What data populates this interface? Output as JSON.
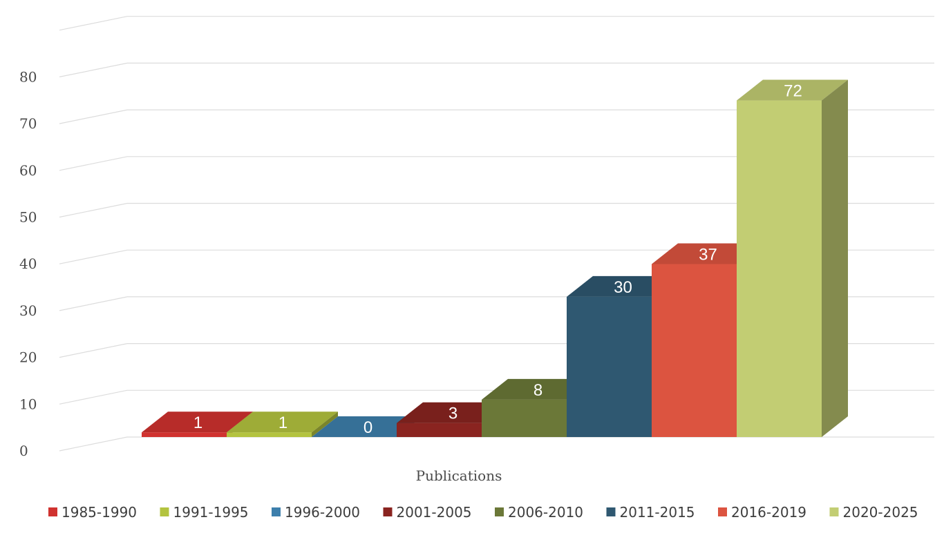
{
  "chart_data": {
    "type": "bar",
    "style": "3d-column",
    "xlabel": "Publications",
    "ylabel": "",
    "ylim": [
      0,
      90
    ],
    "yticks": [
      0,
      10,
      20,
      30,
      40,
      50,
      60,
      70,
      80
    ],
    "grid": true,
    "legend_position": "bottom",
    "categories": [
      "1985-1990",
      "1991-1995",
      "1996-2000",
      "2001-2005",
      "2006-2010",
      "2011-2015",
      "2016-2019",
      "2020-2025"
    ],
    "values": [
      1,
      1,
      0,
      3,
      8,
      30,
      37,
      72
    ],
    "colors": [
      "#d0322f",
      "#b3c33f",
      "#3d7fac",
      "#8a2420",
      "#6b7838",
      "#2f5871",
      "#dc5440",
      "#c2cd73"
    ]
  }
}
